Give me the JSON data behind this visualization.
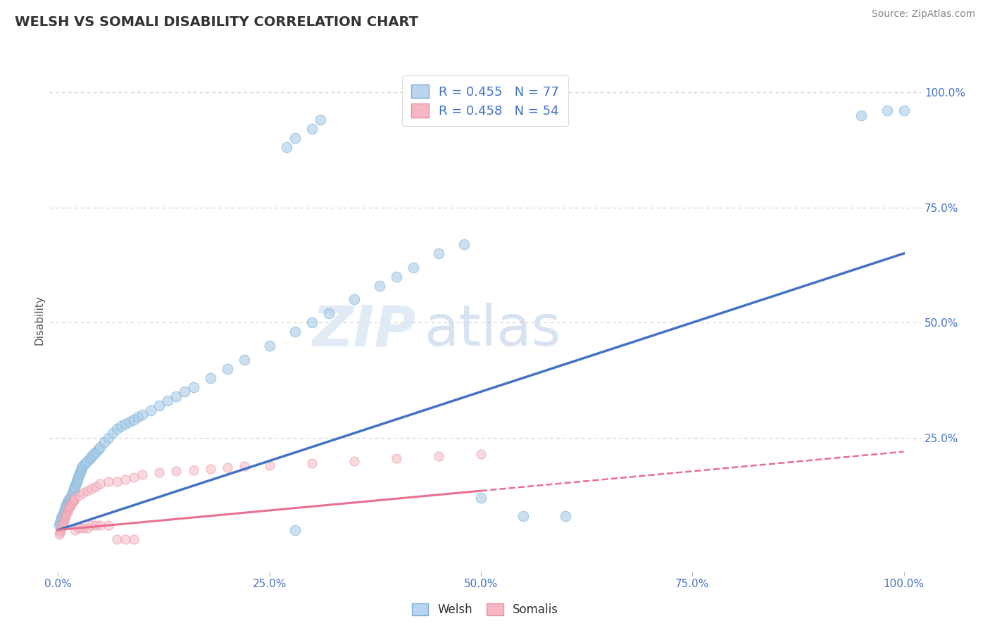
{
  "title": "WELSH VS SOMALI DISABILITY CORRELATION CHART",
  "source": "Source: ZipAtlas.com",
  "ylabel": "Disability",
  "watermark_zip": "ZIP",
  "watermark_atlas": "atlas",
  "welsh_R": 0.455,
  "welsh_N": 77,
  "somali_R": 0.458,
  "somali_N": 54,
  "blue_scatter_color": "#a8cce8",
  "blue_edge_color": "#7aafd4",
  "pink_scatter_color": "#f5b8c4",
  "pink_edge_color": "#e890a0",
  "blue_line_color": "#4472c4",
  "pink_line_color": "#e87090",
  "welsh_scatter_x": [
    0.001,
    0.002,
    0.003,
    0.004,
    0.005,
    0.006,
    0.007,
    0.008,
    0.009,
    0.01,
    0.011,
    0.012,
    0.013,
    0.014,
    0.015,
    0.016,
    0.017,
    0.018,
    0.019,
    0.02,
    0.021,
    0.022,
    0.023,
    0.024,
    0.025,
    0.026,
    0.027,
    0.028,
    0.03,
    0.032,
    0.035,
    0.038,
    0.04,
    0.042,
    0.045,
    0.048,
    0.05,
    0.055,
    0.06,
    0.065,
    0.07,
    0.075,
    0.08,
    0.085,
    0.09,
    0.095,
    0.1,
    0.11,
    0.12,
    0.13,
    0.14,
    0.15,
    0.16,
    0.18,
    0.2,
    0.22,
    0.25,
    0.28,
    0.3,
    0.32,
    0.35,
    0.38,
    0.4,
    0.42,
    0.45,
    0.48,
    0.27,
    0.28,
    0.3,
    0.31,
    0.5,
    0.55,
    0.6,
    0.95,
    0.98,
    1.0,
    0.28
  ],
  "welsh_scatter_y": [
    0.06,
    0.065,
    0.07,
    0.075,
    0.08,
    0.085,
    0.09,
    0.095,
    0.1,
    0.105,
    0.11,
    0.115,
    0.11,
    0.115,
    0.12,
    0.125,
    0.13,
    0.135,
    0.14,
    0.145,
    0.15,
    0.155,
    0.16,
    0.165,
    0.17,
    0.175,
    0.18,
    0.185,
    0.19,
    0.195,
    0.2,
    0.205,
    0.21,
    0.215,
    0.22,
    0.225,
    0.23,
    0.24,
    0.25,
    0.26,
    0.27,
    0.275,
    0.28,
    0.285,
    0.29,
    0.295,
    0.3,
    0.31,
    0.32,
    0.33,
    0.34,
    0.35,
    0.36,
    0.38,
    0.4,
    0.42,
    0.45,
    0.48,
    0.5,
    0.52,
    0.55,
    0.58,
    0.6,
    0.62,
    0.65,
    0.67,
    0.88,
    0.9,
    0.92,
    0.94,
    0.12,
    0.08,
    0.08,
    0.95,
    0.96,
    0.96,
    0.05
  ],
  "somali_scatter_x": [
    0.001,
    0.002,
    0.003,
    0.004,
    0.005,
    0.006,
    0.007,
    0.008,
    0.009,
    0.01,
    0.011,
    0.012,
    0.013,
    0.014,
    0.015,
    0.016,
    0.017,
    0.018,
    0.019,
    0.02,
    0.025,
    0.03,
    0.035,
    0.04,
    0.045,
    0.05,
    0.06,
    0.07,
    0.08,
    0.09,
    0.1,
    0.12,
    0.14,
    0.16,
    0.18,
    0.2,
    0.22,
    0.25,
    0.3,
    0.35,
    0.4,
    0.45,
    0.5,
    0.02,
    0.025,
    0.03,
    0.035,
    0.04,
    0.045,
    0.05,
    0.06,
    0.07,
    0.08,
    0.09
  ],
  "somali_scatter_y": [
    0.04,
    0.045,
    0.05,
    0.055,
    0.06,
    0.065,
    0.07,
    0.075,
    0.08,
    0.085,
    0.09,
    0.095,
    0.1,
    0.1,
    0.105,
    0.11,
    0.11,
    0.115,
    0.115,
    0.12,
    0.125,
    0.13,
    0.135,
    0.14,
    0.145,
    0.15,
    0.155,
    0.155,
    0.16,
    0.165,
    0.17,
    0.175,
    0.178,
    0.18,
    0.182,
    0.185,
    0.188,
    0.19,
    0.195,
    0.2,
    0.205,
    0.21,
    0.215,
    0.05,
    0.055,
    0.055,
    0.055,
    0.06,
    0.06,
    0.06,
    0.06,
    0.03,
    0.03,
    0.03
  ],
  "xlim": [
    -0.01,
    1.02
  ],
  "ylim": [
    -0.04,
    1.05
  ],
  "x_ticks": [
    0.0,
    0.25,
    0.5,
    0.75,
    1.0
  ],
  "x_tick_labels": [
    "0.0%",
    "25.0%",
    "50.0%",
    "75.0%",
    "100.0%"
  ],
  "y_ticks": [
    0.25,
    0.5,
    0.75,
    1.0
  ],
  "y_tick_labels": [
    "25.0%",
    "50.0%",
    "75.0%",
    "100.0%"
  ],
  "grid_color": "#cccccc",
  "background_color": "#ffffff",
  "welsh_trend": [
    0.05,
    0.65
  ],
  "somali_trend_solid_end": 0.5,
  "somali_trend": [
    0.05,
    0.22
  ]
}
